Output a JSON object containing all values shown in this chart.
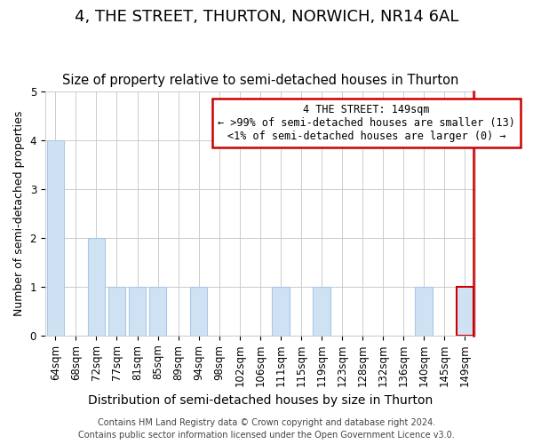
{
  "title1": "4, THE STREET, THURTON, NORWICH, NR14 6AL",
  "title2": "Size of property relative to semi-detached houses in Thurton",
  "xlabel": "Distribution of semi-detached houses by size in Thurton",
  "ylabel": "Number of semi-detached properties",
  "categories": [
    "64sqm",
    "68sqm",
    "72sqm",
    "77sqm",
    "81sqm",
    "85sqm",
    "89sqm",
    "94sqm",
    "98sqm",
    "102sqm",
    "106sqm",
    "111sqm",
    "115sqm",
    "119sqm",
    "123sqm",
    "128sqm",
    "132sqm",
    "136sqm",
    "140sqm",
    "145sqm",
    "149sqm"
  ],
  "values": [
    4,
    0,
    2,
    1,
    1,
    1,
    0,
    1,
    0,
    0,
    0,
    1,
    0,
    1,
    0,
    0,
    0,
    0,
    1,
    0,
    1
  ],
  "bar_color": "#cfe2f3",
  "bar_edge_color": "#a8c8e8",
  "subject_index": 20,
  "subject_edge_color": "#cc0000",
  "ylim": [
    0,
    5
  ],
  "yticks": [
    0,
    1,
    2,
    3,
    4,
    5
  ],
  "annotation_title": "4 THE STREET: 149sqm",
  "annotation_line1": "← >99% of semi-detached houses are smaller (13)",
  "annotation_line2": "<1% of semi-detached houses are larger (0) →",
  "annotation_box_edge": "#cc0000",
  "footer_line1": "Contains HM Land Registry data © Crown copyright and database right 2024.",
  "footer_line2": "Contains public sector information licensed under the Open Government Licence v3.0.",
  "background_color": "#ffffff",
  "grid_color": "#cccccc",
  "title1_fontsize": 13,
  "title2_fontsize": 10.5,
  "xlabel_fontsize": 10,
  "ylabel_fontsize": 9,
  "footer_fontsize": 7,
  "tick_fontsize": 8.5,
  "annot_fontsize": 8.5
}
